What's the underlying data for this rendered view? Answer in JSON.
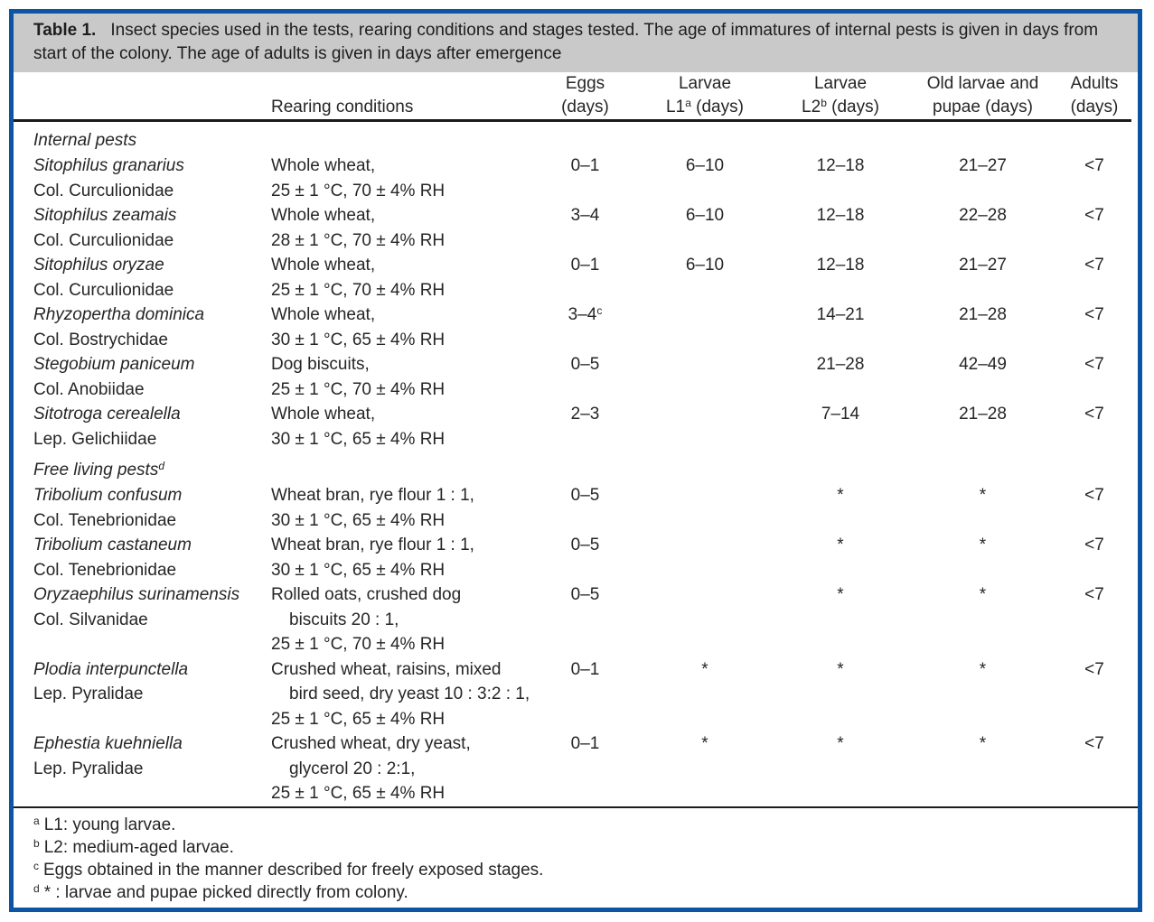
{
  "caption": {
    "label": "Table 1.",
    "text": "Insect species used in the tests, rearing conditions and stages tested. The age of immatures of internal pests is given in days from start of the colony. The age of adults is given in days after emergence"
  },
  "colors": {
    "frame_blue": "#0c55a4",
    "caption_gray": "#c9c9c9",
    "text": "#262626",
    "rule_black": "#1b1b1b"
  },
  "columns": [
    {
      "top": "",
      "bottom": "",
      "align": "l"
    },
    {
      "top": "",
      "bottom": "Rearing conditions",
      "align": "l"
    },
    {
      "top": "Eggs",
      "bottom": "(days)",
      "align": "c"
    },
    {
      "top": "Larvae",
      "bottom": "L1",
      "bottom_sup": "a",
      "bottom_post": " (days)",
      "align": "c"
    },
    {
      "top": "Larvae",
      "bottom": "L2",
      "bottom_sup": "b",
      "bottom_post": " (days)",
      "align": "c"
    },
    {
      "top": "Old larvae and",
      "bottom": "pupae (days)",
      "align": "c"
    },
    {
      "top": "Adults",
      "bottom": "(days)",
      "align": "c"
    }
  ],
  "sections": [
    {
      "label": "Internal pests",
      "label_sup": "",
      "species": [
        {
          "name": "Sitophilus granarius",
          "family": "Col. Curculionidae",
          "rearing": [
            {
              "text": "Whole wheat,",
              "indent": false
            },
            {
              "text": "25 ± 1 °C, 70 ± 4% RH",
              "indent": false
            }
          ],
          "stages": [
            {
              "text": "0–1"
            },
            {
              "text": "6–10"
            },
            {
              "text": "12–18"
            },
            {
              "text": "21–27"
            },
            {
              "text": "<7"
            }
          ]
        },
        {
          "name": "Sitophilus zeamais",
          "family": "Col. Curculionidae",
          "rearing": [
            {
              "text": "Whole wheat,",
              "indent": false
            },
            {
              "text": "28 ± 1 °C, 70 ± 4% RH",
              "indent": false
            }
          ],
          "stages": [
            {
              "text": "3–4"
            },
            {
              "text": "6–10"
            },
            {
              "text": "12–18"
            },
            {
              "text": "22–28"
            },
            {
              "text": "<7"
            }
          ]
        },
        {
          "name": "Sitophilus oryzae",
          "family": "Col. Curculionidae",
          "rearing": [
            {
              "text": "Whole wheat,",
              "indent": false
            },
            {
              "text": "25 ± 1 °C, 70 ± 4% RH",
              "indent": false
            }
          ],
          "stages": [
            {
              "text": "0–1"
            },
            {
              "text": "6–10"
            },
            {
              "text": "12–18"
            },
            {
              "text": "21–27"
            },
            {
              "text": "<7"
            }
          ]
        },
        {
          "name": "Rhyzopertha dominica",
          "family": "Col. Bostrychidae",
          "rearing": [
            {
              "text": "Whole wheat,",
              "indent": false
            },
            {
              "text": "30 ± 1 °C, 65 ± 4% RH",
              "indent": false
            }
          ],
          "stages": [
            {
              "text": "3–4",
              "sup": "c"
            },
            {
              "text": ""
            },
            {
              "text": "14–21"
            },
            {
              "text": "21–28"
            },
            {
              "text": "<7"
            }
          ]
        },
        {
          "name": "Stegobium paniceum",
          "family": "Col. Anobiidae",
          "rearing": [
            {
              "text": "Dog biscuits,",
              "indent": false
            },
            {
              "text": "25 ± 1 °C, 70 ± 4% RH",
              "indent": false
            }
          ],
          "stages": [
            {
              "text": "0–5"
            },
            {
              "text": ""
            },
            {
              "text": "21–28"
            },
            {
              "text": "42–49"
            },
            {
              "text": "<7"
            }
          ]
        },
        {
          "name": "Sitotroga cerealella",
          "family": "Lep. Gelichiidae",
          "rearing": [
            {
              "text": "Whole wheat,",
              "indent": false
            },
            {
              "text": "30 ± 1 °C, 65 ± 4% RH",
              "indent": false
            }
          ],
          "stages": [
            {
              "text": "2–3"
            },
            {
              "text": ""
            },
            {
              "text": "7–14"
            },
            {
              "text": "21–28"
            },
            {
              "text": "<7"
            }
          ]
        }
      ]
    },
    {
      "label": "Free living pests",
      "label_sup": "d",
      "species": [
        {
          "name": "Tribolium confusum",
          "family": "Col. Tenebrionidae",
          "rearing": [
            {
              "text": "Wheat bran, rye flour 1 : 1,",
              "indent": false
            },
            {
              "text": "30 ± 1 °C, 65 ± 4% RH",
              "indent": false
            }
          ],
          "stages": [
            {
              "text": "0–5"
            },
            {
              "text": ""
            },
            {
              "text": "*"
            },
            {
              "text": "*"
            },
            {
              "text": "<7"
            }
          ]
        },
        {
          "name": "Tribolium castaneum",
          "family": "Col. Tenebrionidae",
          "rearing": [
            {
              "text": "Wheat bran, rye flour 1 : 1,",
              "indent": false
            },
            {
              "text": "30 ± 1 °C, 65 ± 4% RH",
              "indent": false
            }
          ],
          "stages": [
            {
              "text": "0–5"
            },
            {
              "text": ""
            },
            {
              "text": "*"
            },
            {
              "text": "*"
            },
            {
              "text": "<7"
            }
          ]
        },
        {
          "name": "Oryzaephilus surinamensis",
          "family": "Col. Silvanidae",
          "rearing": [
            {
              "text": "Rolled oats, crushed dog",
              "indent": false
            },
            {
              "text": "biscuits 20 : 1,",
              "indent": true
            },
            {
              "text": "25 ± 1 °C, 70 ± 4% RH",
              "indent": false
            }
          ],
          "stages": [
            {
              "text": "0–5"
            },
            {
              "text": ""
            },
            {
              "text": "*"
            },
            {
              "text": "*"
            },
            {
              "text": "<7"
            }
          ]
        },
        {
          "name": "Plodia interpunctella",
          "family": "Lep. Pyralidae",
          "rearing": [
            {
              "text": "Crushed wheat, raisins, mixed",
              "indent": false
            },
            {
              "text": "bird seed, dry yeast 10 : 3:2 : 1,",
              "indent": true
            },
            {
              "text": "25 ± 1 °C, 65 ± 4% RH",
              "indent": false
            }
          ],
          "stages": [
            {
              "text": "0–1"
            },
            {
              "text": "*"
            },
            {
              "text": "*"
            },
            {
              "text": "*"
            },
            {
              "text": "<7"
            }
          ]
        },
        {
          "name": "Ephestia kuehniella",
          "family": "Lep. Pyralidae",
          "rearing": [
            {
              "text": "Crushed wheat, dry yeast,",
              "indent": false
            },
            {
              "text": "glycerol 20 : 2:1,",
              "indent": true
            },
            {
              "text": "25 ± 1 °C, 65 ± 4% RH",
              "indent": false
            }
          ],
          "stages": [
            {
              "text": "0–1"
            },
            {
              "text": "*"
            },
            {
              "text": "*"
            },
            {
              "text": "*"
            },
            {
              "text": "<7"
            }
          ]
        }
      ]
    }
  ],
  "footnotes": [
    {
      "sup": "a",
      "text": "L1: young larvae."
    },
    {
      "sup": "b",
      "text": "L2: medium-aged larvae."
    },
    {
      "sup": "c",
      "text": "Eggs obtained in the manner described for freely exposed stages."
    },
    {
      "sup": "d",
      "text": "* : larvae and pupae picked directly from colony."
    }
  ]
}
